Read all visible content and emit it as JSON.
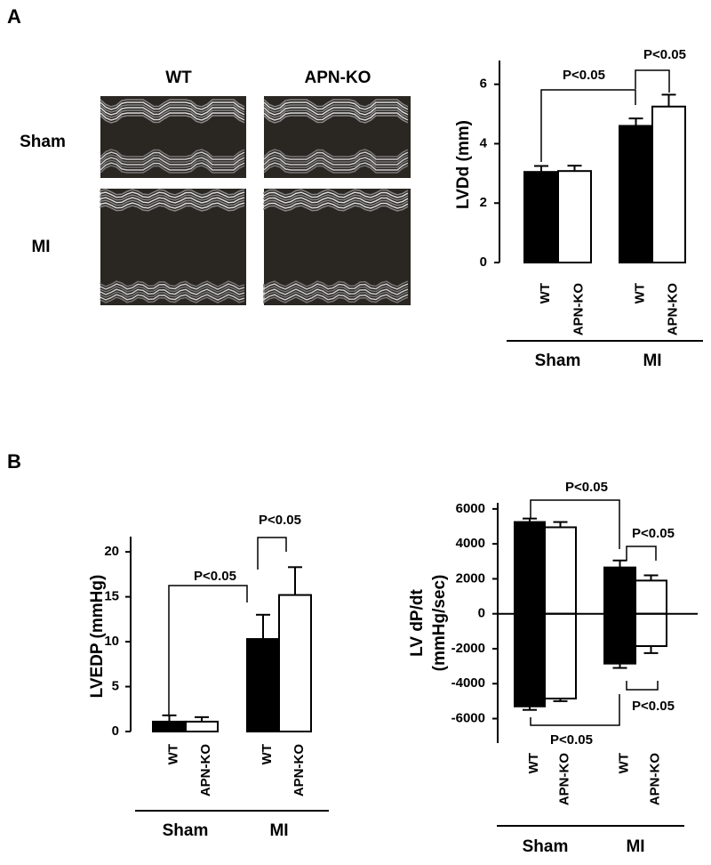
{
  "panel_labels": [
    "A",
    "B"
  ],
  "echo_images": {
    "columns": [
      "WT",
      "APN-KO"
    ],
    "rows": [
      "Sham",
      "MI"
    ]
  },
  "chart_data": [
    {
      "type": "bar",
      "ylabel": "LVDd (mm)",
      "categories": [
        "WT",
        "APN-KO",
        "WT",
        "APN-KO"
      ],
      "groups": [
        "Sham",
        "MI"
      ],
      "values": [
        3.05,
        3.08,
        4.6,
        5.25
      ],
      "errors": [
        0.2,
        0.18,
        0.25,
        0.4
      ],
      "colors": [
        "#000000",
        "#ffffff",
        "#000000",
        "#ffffff"
      ],
      "ylim": [
        0,
        6.8
      ],
      "yticks": [
        0,
        2,
        4,
        6
      ],
      "annotations": [
        "P<0.05",
        "P<0.05"
      ]
    },
    {
      "type": "bar",
      "ylabel": "LVEDP (mmHg)",
      "categories": [
        "WT",
        "APN-KO",
        "WT",
        "APN-KO"
      ],
      "groups": [
        "Sham",
        "MI"
      ],
      "values": [
        1.1,
        1.1,
        10.3,
        15.2
      ],
      "errors": [
        0.7,
        0.5,
        2.7,
        3.1
      ],
      "colors": [
        "#000000",
        "#ffffff",
        "#000000",
        "#ffffff"
      ],
      "ylim": [
        0,
        21.7
      ],
      "yticks": [
        0,
        5,
        10,
        15,
        20
      ],
      "annotations": [
        "P<0.05",
        "P<0.05"
      ]
    },
    {
      "type": "bar_split",
      "ylabel": [
        "LV dP/dt",
        "(mmHg/sec)"
      ],
      "categories": [
        "WT",
        "APN-KO",
        "WT",
        "APN-KO"
      ],
      "groups": [
        "Sham",
        "MI"
      ],
      "values": [
        5250,
        4950,
        2650,
        1900
      ],
      "errors": [
        200,
        300,
        400,
        300
      ],
      "neg_values": [
        -5300,
        -4850,
        -2850,
        -1850
      ],
      "neg_errors": [
        200,
        150,
        250,
        400
      ],
      "colors": [
        "#000000",
        "#ffffff",
        "#000000",
        "#ffffff"
      ],
      "ylim": [
        -7400,
        6350
      ],
      "yticks": [
        -6000,
        -4000,
        -2000,
        0,
        2000,
        4000,
        6000
      ],
      "annotations": [
        "P<0.05",
        "P<0.05",
        "P<0.05",
        "P<0.05"
      ]
    }
  ]
}
